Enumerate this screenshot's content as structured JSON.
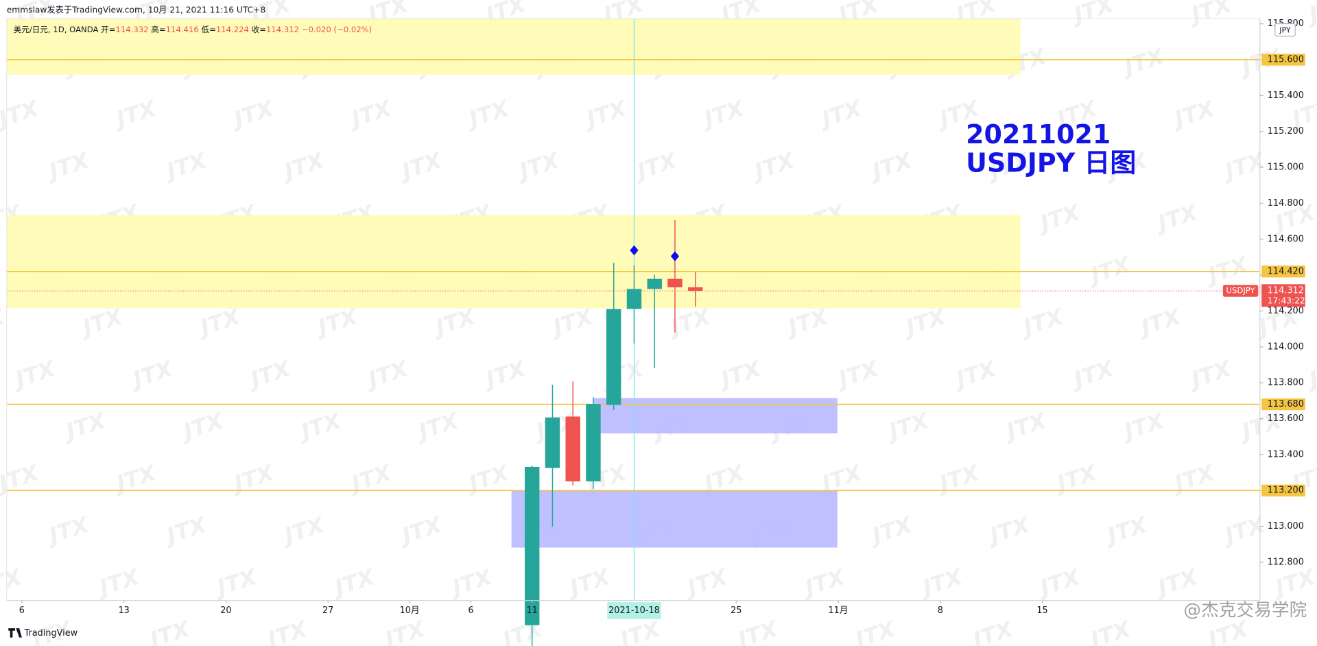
{
  "chart_data": {
    "type": "candlestick",
    "attribution": "emmslaw发表于TradingView.com,  10月 21, 2021 11:16 UTC+8",
    "header": {
      "symbol": "美元/日元, 1D, OANDA",
      "open_label": "开=",
      "high_label": "高=",
      "low_label": "低=",
      "close_label": "收=",
      "change": {
        "value": -0.02,
        "label": "−0.020 (−0.02%)"
      }
    },
    "title_lines": [
      "20211021",
      "USDJPY 日图"
    ],
    "currency": "JPY",
    "brand": "TradingView",
    "watermark": "JTX",
    "corner_watermark": "@杰克交易学院",
    "up_color": "#26a69a",
    "down_color": "#ef5350",
    "x": [
      25,
      26,
      27,
      28,
      29,
      30,
      31,
      32,
      33
    ],
    "open": [
      112.45,
      113.326,
      113.612,
      113.251,
      113.677,
      114.211,
      114.323,
      114.379,
      114.332
    ],
    "high": [
      113.34,
      113.789,
      113.808,
      113.719,
      114.468,
      114.454,
      114.402,
      114.706,
      114.416
    ],
    "low": [
      112.3,
      112.999,
      113.228,
      113.209,
      113.649,
      114.019,
      113.883,
      114.08,
      114.224
    ],
    "close": [
      113.331,
      113.607,
      113.251,
      113.682,
      114.211,
      114.323,
      114.379,
      114.332,
      114.312
    ],
    "xlim": [
      -0.741,
      60.66
    ],
    "xticks": [
      {
        "value": 0,
        "label": "6"
      },
      {
        "value": 5,
        "label": "13"
      },
      {
        "value": 10,
        "label": "20"
      },
      {
        "value": 15,
        "label": "27"
      },
      {
        "value": 19,
        "label": "10月"
      },
      {
        "value": 22,
        "label": "6"
      },
      {
        "value": 25,
        "label": "11"
      },
      {
        "value": 35,
        "label": "25"
      },
      {
        "value": 40,
        "label": "11月"
      },
      {
        "value": 45,
        "label": "8"
      },
      {
        "value": 50,
        "label": "15"
      }
    ],
    "ylim": [
      112.587,
      115.829
    ],
    "yticks": [
      {
        "value": 112.8,
        "label": "112.800"
      },
      {
        "value": 113,
        "label": "113.000"
      },
      {
        "value": 113.2,
        "label": "113.200"
      },
      {
        "value": 113.4,
        "label": "113.400"
      },
      {
        "value": 113.6,
        "label": "113.600"
      },
      {
        "value": 113.8,
        "label": "113.800"
      },
      {
        "value": 114,
        "label": "114.000"
      },
      {
        "value": 114.2,
        "label": "114.200"
      },
      {
        "value": 114.4,
        "label": "114.400"
      },
      {
        "value": 114.6,
        "label": "114.600"
      },
      {
        "value": 114.8,
        "label": "114.800"
      },
      {
        "value": 115,
        "label": "115.000"
      },
      {
        "value": 115.2,
        "label": "115.200"
      },
      {
        "value": 115.4,
        "label": "115.400"
      },
      {
        "value": 115.6,
        "label": "115.600"
      },
      {
        "value": 115.8,
        "label": "115.800"
      }
    ],
    "levels": [
      {
        "value": 115.6,
        "label": "115.600"
      },
      {
        "value": 114.42,
        "label": "114.420"
      },
      {
        "value": 113.68,
        "label": "113.680"
      },
      {
        "value": 113.2,
        "label": "113.200"
      }
    ],
    "level_color": "#f5c542",
    "zones": [
      {
        "x": [
          -0.741,
          48.93
        ],
        "y": [
          115.516,
          115.829
        ],
        "color": "#fffbb0"
      },
      {
        "x": [
          -0.741,
          48.93
        ],
        "y": [
          114.215,
          114.734
        ],
        "color": "#fffbb0"
      },
      {
        "x": [
          27.98,
          39.96
        ],
        "y": [
          113.518,
          113.715
        ],
        "color": "#b8b9ff"
      },
      {
        "x": [
          23.99,
          39.96
        ],
        "y": [
          112.882,
          113.2
        ],
        "color": "#b8b9ff"
      }
    ],
    "markers": [
      {
        "x": 30,
        "y": 114.538
      },
      {
        "x": 32,
        "y": 114.505
      }
    ],
    "marker_color": "#0d0df5",
    "crosshair": {
      "value": 30,
      "label": "2021-10-18"
    },
    "last_price": {
      "value": 114.312,
      "symbol": "USDJPY",
      "countdown": "17:43:22"
    }
  }
}
